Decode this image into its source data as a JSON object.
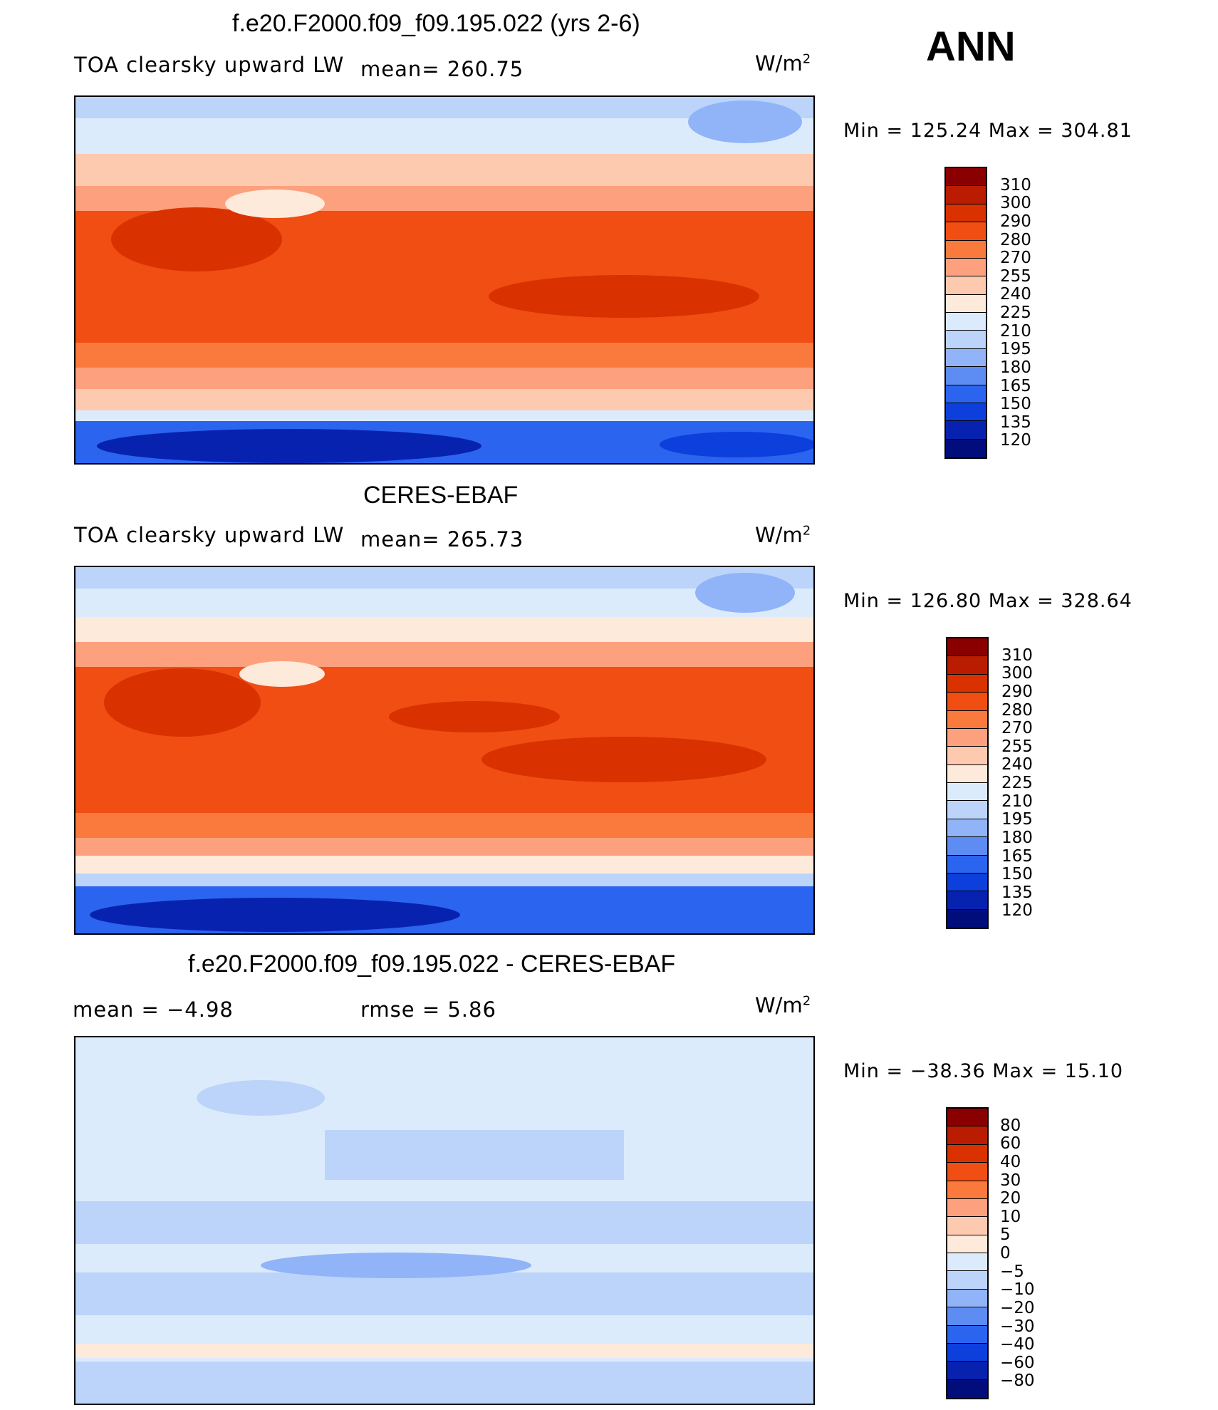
{
  "season": "ANN",
  "panels": [
    {
      "title": "f.e20.F2000.f09_f09.195.022 (yrs 2-6)",
      "left_text": "TOA clearsky upward LW",
      "stat_text": "mean= 260.75",
      "units_base": "W/m",
      "units_exp": "2",
      "minmax": "Min = 125.24 Max = 304.81"
    },
    {
      "title": "CERES-EBAF",
      "left_text": "TOA clearsky upward LW",
      "stat_text": "mean= 265.73",
      "units_base": "W/m",
      "units_exp": "2",
      "minmax": "Min = 126.80 Max = 328.64"
    },
    {
      "title": "f.e20.F2000.f09_f09.195.022 - CERES-EBAF",
      "left_text": "mean =   −4.98",
      "stat_text": "rmse =    5.86",
      "units_base": "W/m",
      "units_exp": "2",
      "minmax": "Min = −38.36 Max =   15.10"
    }
  ],
  "colorbars": {
    "absolute": {
      "labels": [
        "310",
        "300",
        "290",
        "280",
        "270",
        "255",
        "240",
        "225",
        "210",
        "195",
        "180",
        "165",
        "150",
        "135",
        "120"
      ],
      "colors": [
        "#8a0000",
        "#b91c00",
        "#d93200",
        "#f04e13",
        "#fa7a3e",
        "#fca07e",
        "#fdcab0",
        "#feeadb",
        "#dcebfb",
        "#bcd4fa",
        "#91b3f8",
        "#5d8cf3",
        "#2b64ef",
        "#0d3fdc",
        "#0822b0",
        "#000d7a"
      ]
    },
    "difference": {
      "labels": [
        "80",
        "60",
        "40",
        "30",
        "20",
        "10",
        "5",
        "0",
        "−5",
        "−10",
        "−20",
        "−30",
        "−40",
        "−60",
        "−80"
      ],
      "colors": [
        "#8a0000",
        "#b91c00",
        "#d93200",
        "#f04e13",
        "#fa7a3e",
        "#fca07e",
        "#fdcab0",
        "#feeadb",
        "#dcebfb",
        "#bcd4fa",
        "#91b3f8",
        "#5d8cf3",
        "#2b64ef",
        "#0d3fdc",
        "#0822b0",
        "#000d7a"
      ]
    }
  }
}
